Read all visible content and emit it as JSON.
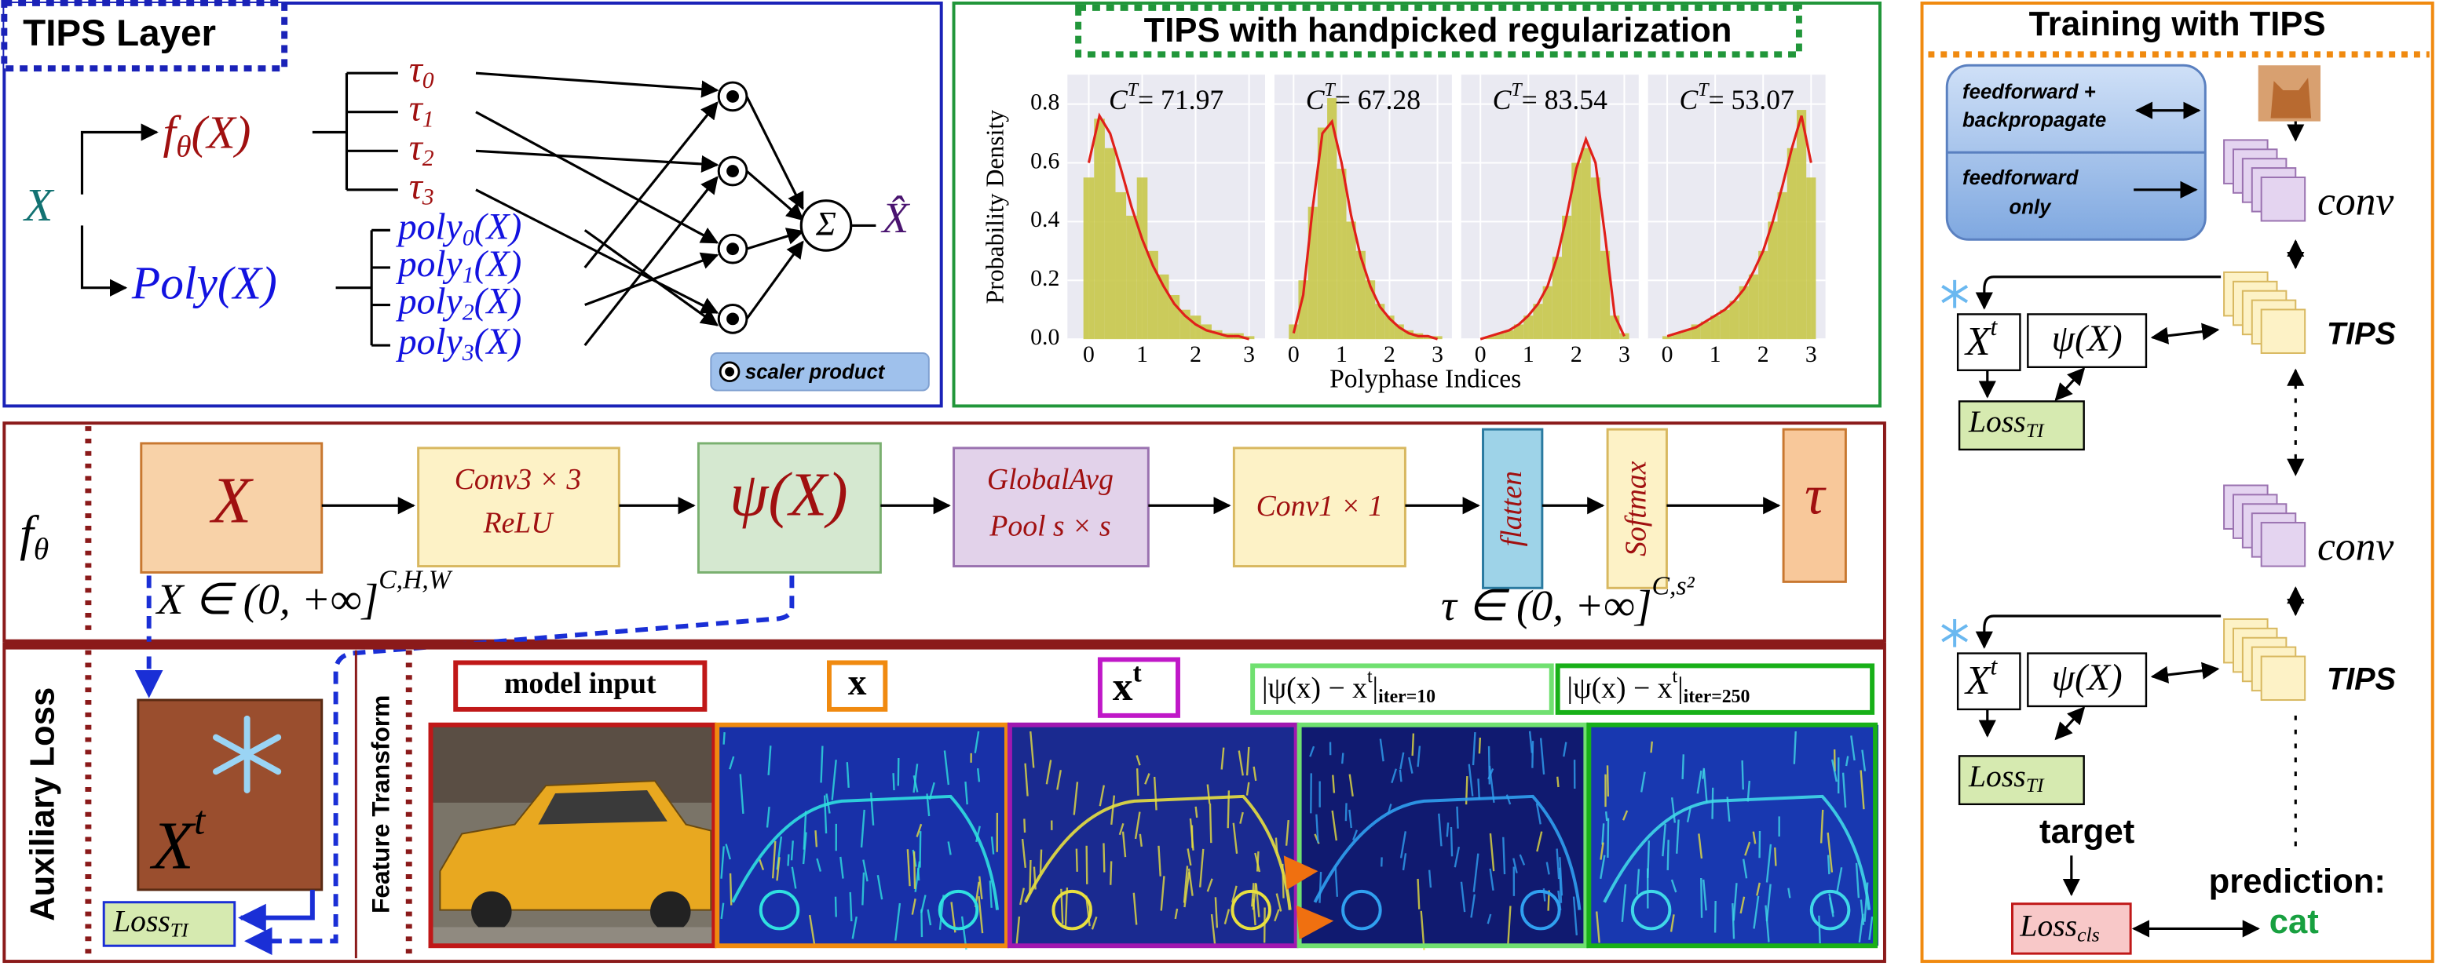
{
  "tips_layer": {
    "title": "TIPS Layer",
    "input": "X",
    "f": {
      "base": "f",
      "sub": "θ",
      "arg": "(X)"
    },
    "poly": "Poly(X)",
    "taus": [
      {
        "base": "τ",
        "sub": "0"
      },
      {
        "base": "τ",
        "sub": "1"
      },
      {
        "base": "τ",
        "sub": "2"
      },
      {
        "base": "τ",
        "sub": "3"
      }
    ],
    "polys": [
      {
        "base": "poly",
        "sub": "0",
        "arg": "(X)"
      },
      {
        "base": "poly",
        "sub": "1",
        "arg": "(X)"
      },
      {
        "base": "poly",
        "sub": "2",
        "arg": "(X)"
      },
      {
        "base": "poly",
        "sub": "3",
        "arg": "(X)"
      }
    ],
    "sum": "Σ",
    "output": "X̂",
    "legend": "scaler product"
  },
  "chart_data": {
    "type": "histogram",
    "title": "TIPS with handpicked  regularization",
    "ylabel": "Probability Density",
    "xlabel": "Polyphase Indices",
    "color": "#c8c84a",
    "curve_color": "#e0201a",
    "xlim": [
      -0.4,
      3.3
    ],
    "ylim": [
      0,
      0.9
    ],
    "xticks": [
      0,
      1,
      2,
      3
    ],
    "yticks": [
      {
        "value": 0,
        "label": "0.0"
      },
      {
        "value": 0.2,
        "label": "0.2"
      },
      {
        "value": 0.4,
        "label": "0.4"
      },
      {
        "value": 0.6,
        "label": "0.6"
      },
      {
        "value": 0.8,
        "label": "0.8"
      }
    ],
    "bins": [
      -0.1,
      0.1,
      0.3,
      0.5,
      0.7,
      0.9,
      1.1,
      1.3,
      1.5,
      1.7,
      1.9,
      2.1,
      2.3,
      2.5,
      2.7,
      2.9,
      3.1
    ],
    "panels": [
      {
        "stat": {
          "symbol": "C",
          "sup": "T",
          "value": "= 71.97"
        },
        "values": [
          0.55,
          0.75,
          0.65,
          0.5,
          0.42,
          0.55,
          0.3,
          0.22,
          0.15,
          0.1,
          0.08,
          0.05,
          0.03,
          0.02,
          0.02,
          0.01
        ],
        "curve": [
          0.6,
          0.76,
          0.7,
          0.58,
          0.45,
          0.34,
          0.25,
          0.18,
          0.12,
          0.08,
          0.05,
          0.03,
          0.02,
          0.01,
          0.01,
          0.0
        ]
      },
      {
        "stat": {
          "symbol": "C",
          "sup": "T",
          "value": "= 67.28"
        },
        "values": [
          0.05,
          0.2,
          0.45,
          0.72,
          0.82,
          0.58,
          0.4,
          0.3,
          0.2,
          0.12,
          0.08,
          0.05,
          0.03,
          0.02,
          0.01,
          0.01
        ],
        "curve": [
          0.02,
          0.15,
          0.45,
          0.7,
          0.74,
          0.6,
          0.42,
          0.28,
          0.18,
          0.11,
          0.07,
          0.04,
          0.02,
          0.01,
          0.01,
          0.0
        ]
      },
      {
        "stat": {
          "symbol": "C",
          "sup": "T",
          "value": "= 83.54"
        },
        "values": [
          0.0,
          0.01,
          0.02,
          0.03,
          0.05,
          0.08,
          0.12,
          0.18,
          0.28,
          0.42,
          0.6,
          0.65,
          0.55,
          0.3,
          0.08,
          0.02
        ],
        "curve": [
          0.0,
          0.01,
          0.02,
          0.03,
          0.05,
          0.08,
          0.12,
          0.18,
          0.28,
          0.42,
          0.58,
          0.68,
          0.6,
          0.35,
          0.08,
          0.01
        ]
      },
      {
        "stat": {
          "symbol": "C",
          "sup": "T",
          "value": "= 53.07"
        },
        "values": [
          0.01,
          0.02,
          0.03,
          0.05,
          0.06,
          0.08,
          0.1,
          0.13,
          0.18,
          0.22,
          0.3,
          0.4,
          0.5,
          0.65,
          0.78,
          0.55
        ],
        "curve": [
          0.01,
          0.02,
          0.03,
          0.04,
          0.06,
          0.08,
          0.1,
          0.13,
          0.17,
          0.23,
          0.3,
          0.4,
          0.52,
          0.65,
          0.76,
          0.6
        ]
      }
    ]
  },
  "f_theta_block": {
    "label": {
      "base": "f",
      "sub": "θ"
    },
    "input": "X",
    "conv3": [
      "Conv3 × 3",
      "ReLU"
    ],
    "psi": "ψ(X)",
    "pool": [
      "GlobalAvg",
      "Pool  s × s"
    ],
    "conv1": "Conv1 × 1",
    "flatten": "flatten",
    "softmax": "Softmax",
    "output": "τ",
    "input_domain": {
      "text": "X ∈ (0, +∞]",
      "sup": "C,H,W"
    },
    "output_domain": {
      "text": "τ ∈ (0, +∞]",
      "sup": "C,s²"
    }
  },
  "auxiliary": {
    "label": "Auxiliary Loss",
    "target": {
      "base": "X",
      "sup": "t"
    },
    "loss": {
      "base": "Loss",
      "sub": "TI"
    },
    "feature_label": "Feature Transform",
    "captions": {
      "model_input": "model input",
      "x": "x",
      "xt": {
        "base": "x",
        "sup": "t"
      },
      "iter10": {
        "text": "|ψ(x) − x",
        "sup": "t",
        "close": "|",
        "sub": "iter=10"
      },
      "iter250": {
        "text": "|ψ(x) − x",
        "sup": "t",
        "close": "|",
        "sub": "iter=250"
      }
    }
  },
  "training": {
    "title": "Training with TIPS",
    "legend_backprop": [
      "feedforward +",
      "backpropagate"
    ],
    "legend_ff": [
      "feedforward",
      "only"
    ],
    "conv": [
      "conv",
      "conv"
    ],
    "tips": [
      "TIPS",
      "TIPS"
    ],
    "xt": [
      {
        "base": "X",
        "sup": "t"
      },
      {
        "base": "X",
        "sup": "t"
      }
    ],
    "psi": [
      "ψ(X)",
      "ψ(X)"
    ],
    "loss_ti": [
      {
        "base": "Loss",
        "sub": "TI"
      },
      {
        "base": "Loss",
        "sub": "TI"
      }
    ],
    "target": "target",
    "prediction": "prediction:",
    "prediction_value": "cat",
    "loss_cls": {
      "base": "Loss",
      "sub": "cls"
    }
  }
}
